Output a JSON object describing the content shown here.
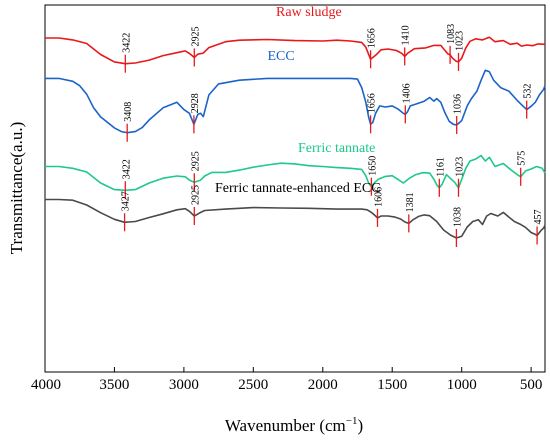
{
  "chart_data": {
    "type": "line",
    "xlabel": "Wavenumber (cm",
    "xlabel_sup": "−1",
    "xlabel_end": ")",
    "ylabel": "Transmittance(a.u.)",
    "xlim": [
      4000,
      400
    ],
    "x_reversed": true,
    "xticks": [
      4000,
      3500,
      3000,
      2500,
      2000,
      1500,
      1000,
      500
    ],
    "ylim": [
      0,
      100
    ],
    "grid": false,
    "series": [
      {
        "name": "Raw sludge",
        "color": "#e8191b",
        "points": [
          [
            4000,
            91.0
          ],
          [
            3900,
            91.0
          ],
          [
            3800,
            90.5
          ],
          [
            3700,
            89.5
          ],
          [
            3600,
            86.5
          ],
          [
            3500,
            84.5
          ],
          [
            3422,
            84.0
          ],
          [
            3350,
            84.2
          ],
          [
            3250,
            85.0
          ],
          [
            3150,
            86.2
          ],
          [
            3050,
            87.0
          ],
          [
            2990,
            87.5
          ],
          [
            2960,
            86.8
          ],
          [
            2925,
            85.7
          ],
          [
            2900,
            86.6
          ],
          [
            2860,
            86.9
          ],
          [
            2820,
            88.4
          ],
          [
            2700,
            90.0
          ],
          [
            2600,
            90.4
          ],
          [
            2400,
            90.6
          ],
          [
            2200,
            90.3
          ],
          [
            2000,
            90.2
          ],
          [
            1900,
            90.4
          ],
          [
            1800,
            90.2
          ],
          [
            1720,
            89.8
          ],
          [
            1690,
            88.5
          ],
          [
            1656,
            85.2
          ],
          [
            1620,
            86.3
          ],
          [
            1580,
            87.8
          ],
          [
            1530,
            88.0
          ],
          [
            1470,
            87.6
          ],
          [
            1430,
            86.8
          ],
          [
            1410,
            86.0
          ],
          [
            1390,
            86.8
          ],
          [
            1340,
            88.1
          ],
          [
            1300,
            88.2
          ],
          [
            1260,
            88.3
          ],
          [
            1200,
            89.0
          ],
          [
            1150,
            89.0
          ],
          [
            1120,
            87.6
          ],
          [
            1100,
            86.7
          ],
          [
            1083,
            86.4
          ],
          [
            1065,
            85.5
          ],
          [
            1040,
            84.7
          ],
          [
            1023,
            84.5
          ],
          [
            1000,
            85.5
          ],
          [
            970,
            88.3
          ],
          [
            940,
            90.1
          ],
          [
            900,
            90.8
          ],
          [
            850,
            90.5
          ],
          [
            800,
            91.2
          ],
          [
            760,
            90.0
          ],
          [
            700,
            90.3
          ],
          [
            650,
            89.3
          ],
          [
            600,
            89.6
          ],
          [
            570,
            88.8
          ],
          [
            530,
            89.1
          ],
          [
            490,
            88.9
          ],
          [
            450,
            89.4
          ],
          [
            400,
            89.3
          ]
        ]
      },
      {
        "name": "ECC",
        "color": "#1c63c9",
        "points": [
          [
            4000,
            80.0
          ],
          [
            3900,
            80.0
          ],
          [
            3800,
            79.2
          ],
          [
            3750,
            78.0
          ],
          [
            3700,
            75.7
          ],
          [
            3650,
            72.0
          ],
          [
            3600,
            69.5
          ],
          [
            3550,
            68.0
          ],
          [
            3500,
            66.5
          ],
          [
            3450,
            65.5
          ],
          [
            3408,
            65.2
          ],
          [
            3350,
            65.5
          ],
          [
            3300,
            66.6
          ],
          [
            3250,
            68.7
          ],
          [
            3150,
            72.0
          ],
          [
            3050,
            73.5
          ],
          [
            3000,
            71.5
          ],
          [
            2960,
            70.5
          ],
          [
            2928,
            67.5
          ],
          [
            2900,
            70.2
          ],
          [
            2880,
            70.5
          ],
          [
            2860,
            69.6
          ],
          [
            2820,
            75.5
          ],
          [
            2750,
            78.5
          ],
          [
            2600,
            79.5
          ],
          [
            2400,
            80.0
          ],
          [
            2200,
            80.0
          ],
          [
            2000,
            80.0
          ],
          [
            1900,
            80.0
          ],
          [
            1800,
            80.0
          ],
          [
            1750,
            79.8
          ],
          [
            1720,
            77.5
          ],
          [
            1690,
            73.5
          ],
          [
            1670,
            69.5
          ],
          [
            1656,
            67.5
          ],
          [
            1640,
            68.0
          ],
          [
            1620,
            70.5
          ],
          [
            1590,
            72.5
          ],
          [
            1550,
            72.2
          ],
          [
            1500,
            72.5
          ],
          [
            1460,
            71.7
          ],
          [
            1420,
            70.5
          ],
          [
            1406,
            70.2
          ],
          [
            1390,
            70.9
          ],
          [
            1370,
            72.5
          ],
          [
            1330,
            73.0
          ],
          [
            1270,
            73.8
          ],
          [
            1230,
            74.8
          ],
          [
            1200,
            73.8
          ],
          [
            1180,
            74.5
          ],
          [
            1150,
            73.5
          ],
          [
            1120,
            70.6
          ],
          [
            1090,
            68.3
          ],
          [
            1060,
            67.5
          ],
          [
            1036,
            67.3
          ],
          [
            1000,
            68.5
          ],
          [
            960,
            72.5
          ],
          [
            930,
            74.5
          ],
          [
            890,
            76.5
          ],
          [
            860,
            79.5
          ],
          [
            830,
            82.2
          ],
          [
            800,
            81.8
          ],
          [
            770,
            79.5
          ],
          [
            720,
            77.5
          ],
          [
            660,
            76.5
          ],
          [
            600,
            74.0
          ],
          [
            560,
            72.5
          ],
          [
            532,
            71.5
          ],
          [
            500,
            72.4
          ],
          [
            470,
            73.5
          ],
          [
            440,
            75.5
          ],
          [
            410,
            77.0
          ],
          [
            400,
            78.0
          ]
        ]
      },
      {
        "name": "Ferric tannate",
        "color": "#1ec98a",
        "points": [
          [
            4000,
            56.0
          ],
          [
            3900,
            56.0
          ],
          [
            3800,
            55.5
          ],
          [
            3700,
            54.5
          ],
          [
            3600,
            51.5
          ],
          [
            3500,
            49.7
          ],
          [
            3422,
            49.5
          ],
          [
            3350,
            49.7
          ],
          [
            3250,
            51.5
          ],
          [
            3150,
            52.8
          ],
          [
            3050,
            53.4
          ],
          [
            2990,
            53.2
          ],
          [
            2960,
            52.3
          ],
          [
            2925,
            51.7
          ],
          [
            2880,
            52.3
          ],
          [
            2850,
            53.4
          ],
          [
            2800,
            54.4
          ],
          [
            2700,
            54.4
          ],
          [
            2600,
            55.0
          ],
          [
            2500,
            55.8
          ],
          [
            2400,
            56.4
          ],
          [
            2300,
            56.9
          ],
          [
            2200,
            56.7
          ],
          [
            2100,
            56.2
          ],
          [
            2000,
            56.0
          ],
          [
            1900,
            55.7
          ],
          [
            1800,
            55.5
          ],
          [
            1720,
            55.2
          ],
          [
            1690,
            53.5
          ],
          [
            1670,
            51.5
          ],
          [
            1650,
            50.5
          ],
          [
            1630,
            51.5
          ],
          [
            1600,
            52.5
          ],
          [
            1550,
            53.3
          ],
          [
            1500,
            53.5
          ],
          [
            1460,
            52.5
          ],
          [
            1420,
            51.5
          ],
          [
            1380,
            52.7
          ],
          [
            1330,
            53.8
          ],
          [
            1280,
            54.3
          ],
          [
            1230,
            54.2
          ],
          [
            1200,
            52.5
          ],
          [
            1180,
            51.0
          ],
          [
            1161,
            50.2
          ],
          [
            1140,
            51.2
          ],
          [
            1110,
            53.8
          ],
          [
            1080,
            52.7
          ],
          [
            1050,
            51.7
          ],
          [
            1023,
            50.2
          ],
          [
            1000,
            52.5
          ],
          [
            970,
            55.5
          ],
          [
            940,
            57.5
          ],
          [
            900,
            58.0
          ],
          [
            860,
            59.0
          ],
          [
            830,
            57.5
          ],
          [
            800,
            58.5
          ],
          [
            760,
            56.0
          ],
          [
            700,
            56.8
          ],
          [
            650,
            55.2
          ],
          [
            600,
            53.8
          ],
          [
            575,
            53.2
          ],
          [
            540,
            54.8
          ],
          [
            500,
            55.3
          ],
          [
            460,
            56.0
          ],
          [
            420,
            55.5
          ],
          [
            400,
            54.2
          ]
        ]
      },
      {
        "name": "Ferric tannate-enhanced ECC",
        "color": "#4a4a4a",
        "points": [
          [
            4000,
            47.0
          ],
          [
            3900,
            47.0
          ],
          [
            3800,
            46.8
          ],
          [
            3700,
            45.5
          ],
          [
            3600,
            43.4
          ],
          [
            3500,
            41.6
          ],
          [
            3427,
            40.8
          ],
          [
            3350,
            41.0
          ],
          [
            3250,
            42.1
          ],
          [
            3150,
            43.1
          ],
          [
            3050,
            44.2
          ],
          [
            2990,
            44.5
          ],
          [
            2960,
            43.8
          ],
          [
            2925,
            42.5
          ],
          [
            2880,
            43.5
          ],
          [
            2850,
            44.0
          ],
          [
            2700,
            44.4
          ],
          [
            2500,
            44.8
          ],
          [
            2300,
            44.7
          ],
          [
            2100,
            44.6
          ],
          [
            2000,
            44.5
          ],
          [
            1900,
            44.4
          ],
          [
            1800,
            44.4
          ],
          [
            1720,
            44.4
          ],
          [
            1680,
            44.2
          ],
          [
            1650,
            43.5
          ],
          [
            1620,
            42.5
          ],
          [
            1606,
            42.0
          ],
          [
            1580,
            42.5
          ],
          [
            1530,
            42.5
          ],
          [
            1480,
            42.2
          ],
          [
            1440,
            41.7
          ],
          [
            1410,
            40.9
          ],
          [
            1381,
            40.5
          ],
          [
            1350,
            41.5
          ],
          [
            1310,
            42.4
          ],
          [
            1270,
            42.8
          ],
          [
            1230,
            42.6
          ],
          [
            1180,
            41.0
          ],
          [
            1130,
            38.7
          ],
          [
            1080,
            37.3
          ],
          [
            1038,
            36.5
          ],
          [
            1000,
            37.0
          ],
          [
            960,
            39.5
          ],
          [
            920,
            41.0
          ],
          [
            880,
            41.5
          ],
          [
            850,
            40.2
          ],
          [
            820,
            42.5
          ],
          [
            790,
            43.2
          ],
          [
            740,
            42.5
          ],
          [
            700,
            43.5
          ],
          [
            660,
            42.2
          ],
          [
            620,
            41.0
          ],
          [
            580,
            40.3
          ],
          [
            540,
            39.4
          ],
          [
            500,
            38.0
          ],
          [
            470,
            37.5
          ],
          [
            457,
            37.2
          ],
          [
            430,
            38.5
          ],
          [
            410,
            39.2
          ],
          [
            400,
            40.0
          ]
        ]
      }
    ],
    "series_labels": [
      {
        "text": "Raw sludge",
        "color": "#e8191b",
        "x": 2100,
        "y": 97
      },
      {
        "text": "ECC",
        "color": "#1c63c9",
        "x": 2300,
        "y": 85
      },
      {
        "text": "Ferric tannate",
        "color": "#1ec98a",
        "x": 1900,
        "y": 60
      },
      {
        "text": "Ferric tannate-enhanced ECC",
        "color": "#000000",
        "x": 2180,
        "y": 49
      }
    ],
    "peaks": [
      {
        "series": 0,
        "x": 3422,
        "label": "3422"
      },
      {
        "series": 0,
        "x": 2925,
        "label": "2925"
      },
      {
        "series": 0,
        "x": 1656,
        "label": "1656"
      },
      {
        "series": 0,
        "x": 1410,
        "label": "1410"
      },
      {
        "series": 0,
        "x": 1083,
        "label": "1083"
      },
      {
        "series": 0,
        "x": 1023,
        "label": "1023"
      },
      {
        "series": 1,
        "x": 3408,
        "label": "3408"
      },
      {
        "series": 1,
        "x": 2928,
        "label": "2928"
      },
      {
        "series": 1,
        "x": 1656,
        "label": "1656"
      },
      {
        "series": 1,
        "x": 1406,
        "label": "1406"
      },
      {
        "series": 1,
        "x": 1036,
        "label": "1036"
      },
      {
        "series": 1,
        "x": 532,
        "label": "532"
      },
      {
        "series": 2,
        "x": 3422,
        "label": "3422"
      },
      {
        "series": 2,
        "x": 2925,
        "label": "2925"
      },
      {
        "series": 2,
        "x": 1650,
        "label": "1650"
      },
      {
        "series": 2,
        "x": 1161,
        "label": "1161"
      },
      {
        "series": 2,
        "x": 1023,
        "label": "1023"
      },
      {
        "series": 2,
        "x": 575,
        "label": "575"
      },
      {
        "series": 3,
        "x": 3427,
        "label": "3427"
      },
      {
        "series": 3,
        "x": 2925,
        "label": "2925"
      },
      {
        "series": 3,
        "x": 1606,
        "label": "1606"
      },
      {
        "series": 3,
        "x": 1381,
        "label": "1381"
      },
      {
        "series": 3,
        "x": 1038,
        "label": "1038"
      },
      {
        "series": 3,
        "x": 457,
        "label": "457"
      }
    ],
    "marker_color": "#e8191b"
  }
}
